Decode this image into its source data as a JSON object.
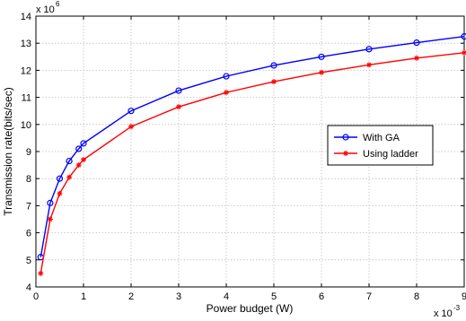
{
  "chart_data": {
    "type": "line",
    "xlabel": "Power budget (W)",
    "ylabel": "Transmission rate(bits/sec)",
    "x_multiplier_label": "x 10",
    "x_multiplier_exp": "-3",
    "y_multiplier_label": "x 10",
    "y_multiplier_exp": "6",
    "xlim": [
      0,
      9
    ],
    "ylim": [
      4,
      14
    ],
    "xticks": [
      0,
      1,
      2,
      3,
      4,
      5,
      6,
      7,
      8,
      9
    ],
    "yticks": [
      4,
      5,
      6,
      7,
      8,
      9,
      10,
      11,
      12,
      13,
      14
    ],
    "grid": true,
    "legend_position": "right-middle",
    "series": [
      {
        "name": "With GA",
        "color": "#0000ff",
        "marker": "circle",
        "x": [
          0.1,
          0.3,
          0.5,
          0.7,
          0.9,
          1,
          2,
          3,
          4,
          5,
          6,
          7,
          8,
          9
        ],
        "y": [
          5.1,
          7.1,
          8.0,
          8.65,
          9.1,
          9.3,
          10.5,
          11.25,
          11.78,
          12.18,
          12.5,
          12.78,
          13.02,
          13.25
        ]
      },
      {
        "name": "Using ladder",
        "color": "#ff0000",
        "marker": "star",
        "x": [
          0.1,
          0.3,
          0.5,
          0.7,
          0.9,
          1,
          2,
          3,
          4,
          5,
          6,
          7,
          8,
          9
        ],
        "y": [
          4.5,
          6.5,
          7.45,
          8.05,
          8.5,
          8.7,
          9.92,
          10.65,
          11.18,
          11.58,
          11.92,
          12.2,
          12.45,
          12.65
        ]
      }
    ]
  }
}
